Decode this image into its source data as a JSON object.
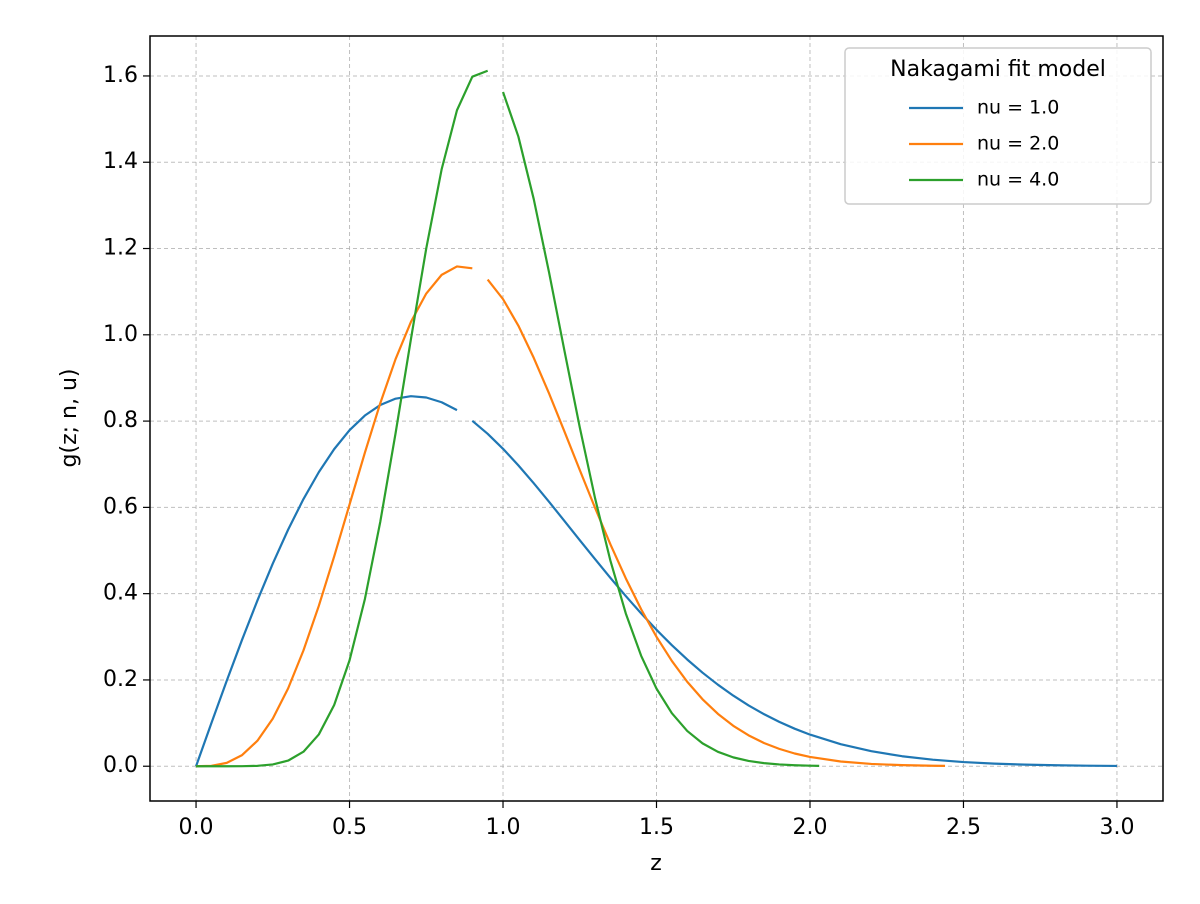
{
  "chart_data": {
    "type": "line",
    "xlabel": "z",
    "ylabel": "g(z; n, u)",
    "xlim": [
      -0.15,
      3.15
    ],
    "ylim": [
      -0.0806,
      1.6926
    ],
    "xticks": [
      {
        "value": 0,
        "label": "0.0"
      },
      0.5,
      {
        "value": 1,
        "label": "1.0"
      },
      1.5,
      {
        "value": 2,
        "label": "2.0"
      },
      2.5,
      {
        "value": 3,
        "label": "3.0"
      }
    ],
    "yticks": [
      {
        "value": 0,
        "label": "0.0"
      },
      0.2,
      0.4,
      0.6,
      0.8,
      {
        "value": 1,
        "label": "1.0"
      },
      1.2,
      1.4,
      1.6
    ],
    "grid": true,
    "legend_title": "Nakagami fit model",
    "legend_loc": "upper right",
    "series": [
      {
        "name": "nu = 1.0",
        "color": "#1f77b4",
        "x": [
          0,
          0.05,
          0.1,
          0.15,
          0.2,
          0.25,
          0.3,
          0.35,
          0.4,
          0.45,
          0.5,
          0.55,
          0.6,
          0.65,
          0.7,
          0.75,
          0.8,
          0.85,
          0.875,
          0.9,
          0.95,
          1.0,
          1.05,
          1.1,
          1.15,
          1.2,
          1.25,
          1.3,
          1.35,
          1.4,
          1.45,
          1.5,
          1.55,
          1.6,
          1.65,
          1.7,
          1.75,
          1.8,
          1.85,
          1.9,
          1.95,
          2.0,
          2.1,
          2.2,
          2.3,
          2.4,
          2.5,
          2.6,
          2.7,
          2.8,
          2.9,
          3.0
        ],
        "values": [
          0,
          0.0998,
          0.198,
          0.2933,
          0.3843,
          0.4697,
          0.5484,
          0.6193,
          0.6817,
          0.735,
          0.7788,
          0.8129,
          0.8372,
          0.852,
          0.8577,
          0.8547,
          0.8437,
          0.8255,
          null,
          0.8007,
          0.7705,
          0.7358,
          0.6973,
          0.656,
          0.6129,
          0.5686,
          0.524,
          0.4798,
          0.4364,
          0.3944,
          0.3542,
          0.3162,
          0.2805,
          0.2474,
          0.2168,
          0.189,
          0.1637,
          0.141,
          0.1207,
          0.1028,
          0.087,
          0.0733,
          0.0511,
          0.0348,
          0.0232,
          0.0151,
          0.0097,
          0.006,
          0.0037,
          0.0022,
          0.0013,
          0.0007
        ]
      },
      {
        "name": "nu = 2.0",
        "color": "#ff7f0e",
        "x": [
          0,
          0.05,
          0.1,
          0.15,
          0.2,
          0.25,
          0.3,
          0.35,
          0.4,
          0.45,
          0.5,
          0.55,
          0.6,
          0.65,
          0.7,
          0.75,
          0.8,
          0.85,
          0.9,
          0.925,
          0.95,
          1.0,
          1.05,
          1.1,
          1.15,
          1.2,
          1.25,
          1.3,
          1.35,
          1.4,
          1.45,
          1.5,
          1.55,
          1.6,
          1.65,
          1.7,
          1.75,
          1.8,
          1.85,
          1.9,
          1.95,
          2.0,
          2.1,
          2.2,
          2.3,
          2.4,
          2.44
        ],
        "values": [
          0,
          0.001,
          0.0078,
          0.0258,
          0.0591,
          0.1103,
          0.1804,
          0.2685,
          0.3718,
          0.4862,
          0.6065,
          0.7268,
          0.8411,
          0.9438,
          1.0299,
          1.0957,
          1.1389,
          1.1585,
          1.1542,
          null,
          1.1281,
          1.0827,
          1.0212,
          0.9468,
          0.864,
          0.7761,
          0.6866,
          0.5985,
          0.5141,
          0.4355,
          0.3639,
          0.3,
          0.244,
          0.1958,
          0.1552,
          0.1214,
          0.0938,
          0.0716,
          0.0539,
          0.0402,
          0.0295,
          0.0215,
          0.011,
          0.0053,
          0.0025,
          0.0011,
          0.0008
        ]
      },
      {
        "name": "nu = 4.0",
        "color": "#2ca02c",
        "x": [
          0,
          0.05,
          0.1,
          0.15,
          0.2,
          0.25,
          0.3,
          0.35,
          0.4,
          0.45,
          0.5,
          0.55,
          0.6,
          0.65,
          0.7,
          0.75,
          0.8,
          0.85,
          0.9,
          0.95,
          0.96,
          1.0,
          1.05,
          1.1,
          1.15,
          1.2,
          1.25,
          1.3,
          1.35,
          1.4,
          1.45,
          1.5,
          1.55,
          1.6,
          1.65,
          1.7,
          1.75,
          1.8,
          1.85,
          1.9,
          1.95,
          2.0,
          2.03
        ],
        "values": [
          0,
          0,
          0,
          0.0001,
          0.0009,
          0.0041,
          0.013,
          0.0336,
          0.0737,
          0.1419,
          0.2453,
          0.3874,
          0.566,
          0.7719,
          0.9899,
          1.2005,
          1.3834,
          1.5205,
          1.5983,
          1.612,
          null,
          1.5629,
          1.4595,
          1.3149,
          1.1445,
          0.9635,
          0.7855,
          0.6207,
          0.476,
          0.3541,
          0.256,
          0.1799,
          0.123,
          0.0818,
          0.053,
          0.0334,
          0.0205,
          0.0123,
          0.0072,
          0.0041,
          0.0023,
          0.0012,
          0.0009
        ]
      }
    ]
  }
}
